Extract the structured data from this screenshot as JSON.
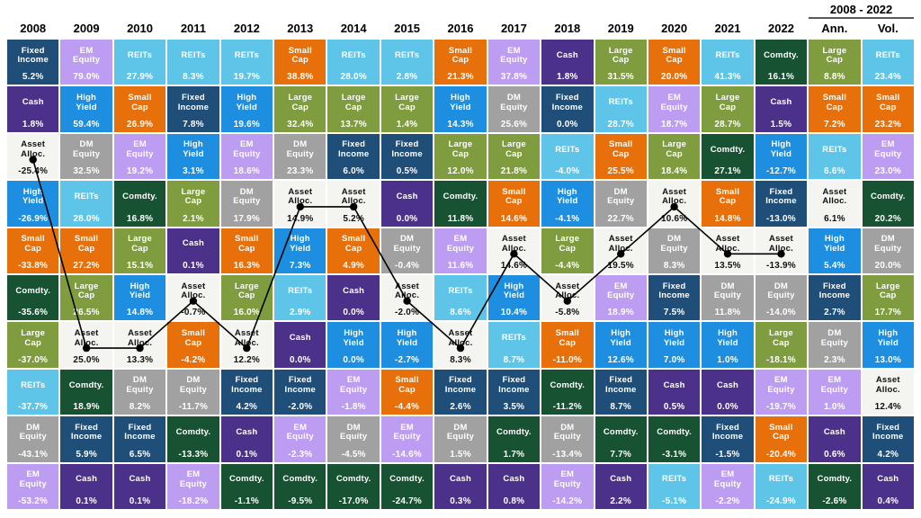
{
  "header": {
    "group_label": "2008 - 2022"
  },
  "chart_data": {
    "type": "table",
    "subtype": "asset-class-returns-quilt",
    "period_label": "2008 - 2022",
    "summary_columns": [
      "Ann.",
      "Vol."
    ],
    "overlay_line_asset": "Asset Alloc.",
    "colors": {
      "Fixed Income": "#1F4E79",
      "EM Equity": "#BD9DF2",
      "REITs": "#5EC4E8",
      "Small Cap": "#E8700A",
      "Cash": "#4B3189",
      "High Yield": "#1E8FE0",
      "Large Cap": "#7F9C3E",
      "Asset Alloc.": "#F4F4F1",
      "DM Equity": "#A1A1A1",
      "Comdty.": "#175233"
    },
    "dark_text_assets": [
      "Asset Alloc."
    ],
    "columns": [
      {
        "label": "2008",
        "in_line": true,
        "cells": [
          [
            "Fixed Income",
            "5.2%"
          ],
          [
            "Cash",
            "1.8%"
          ],
          [
            "Asset Alloc.",
            "-25.4%"
          ],
          [
            "High Yield",
            "-26.9%"
          ],
          [
            "Small Cap",
            "-33.8%"
          ],
          [
            "Comdty.",
            "-35.6%"
          ],
          [
            "Large Cap",
            "-37.0%"
          ],
          [
            "REITs",
            "-37.7%"
          ],
          [
            "DM Equity",
            "-43.1%"
          ],
          [
            "EM Equity",
            "-53.2%"
          ]
        ]
      },
      {
        "label": "2009",
        "in_line": true,
        "cells": [
          [
            "EM Equity",
            "79.0%"
          ],
          [
            "High Yield",
            "59.4%"
          ],
          [
            "DM Equity",
            "32.5%"
          ],
          [
            "REITs",
            "28.0%"
          ],
          [
            "Small Cap",
            "27.2%"
          ],
          [
            "Large Cap",
            "26.5%"
          ],
          [
            "Asset Alloc.",
            "25.0%"
          ],
          [
            "Comdty.",
            "18.9%"
          ],
          [
            "Fixed Income",
            "5.9%"
          ],
          [
            "Cash",
            "0.1%"
          ]
        ]
      },
      {
        "label": "2010",
        "in_line": true,
        "cells": [
          [
            "REITs",
            "27.9%"
          ],
          [
            "Small Cap",
            "26.9%"
          ],
          [
            "EM Equity",
            "19.2%"
          ],
          [
            "Comdty.",
            "16.8%"
          ],
          [
            "Large Cap",
            "15.1%"
          ],
          [
            "High Yield",
            "14.8%"
          ],
          [
            "Asset Alloc.",
            "13.3%"
          ],
          [
            "DM Equity",
            "8.2%"
          ],
          [
            "Fixed Income",
            "6.5%"
          ],
          [
            "Cash",
            "0.1%"
          ]
        ]
      },
      {
        "label": "2011",
        "in_line": true,
        "cells": [
          [
            "REITs",
            "8.3%"
          ],
          [
            "Fixed Income",
            "7.8%"
          ],
          [
            "High Yield",
            "3.1%"
          ],
          [
            "Large Cap",
            "2.1%"
          ],
          [
            "Cash",
            "0.1%"
          ],
          [
            "Asset Alloc.",
            "-0.7%"
          ],
          [
            "Small Cap",
            "-4.2%"
          ],
          [
            "DM Equity",
            "-11.7%"
          ],
          [
            "Comdty.",
            "-13.3%"
          ],
          [
            "EM Equity",
            "-18.2%"
          ]
        ]
      },
      {
        "label": "2012",
        "in_line": true,
        "cells": [
          [
            "REITs",
            "19.7%"
          ],
          [
            "High Yield",
            "19.6%"
          ],
          [
            "EM Equity",
            "18.6%"
          ],
          [
            "DM Equity",
            "17.9%"
          ],
          [
            "Small Cap",
            "16.3%"
          ],
          [
            "Large Cap",
            "16.0%"
          ],
          [
            "Asset Alloc.",
            "12.2%"
          ],
          [
            "Fixed Income",
            "4.2%"
          ],
          [
            "Cash",
            "0.1%"
          ],
          [
            "Comdty.",
            "-1.1%"
          ]
        ]
      },
      {
        "label": "2013",
        "in_line": true,
        "cells": [
          [
            "Small Cap",
            "38.8%"
          ],
          [
            "Large Cap",
            "32.4%"
          ],
          [
            "DM Equity",
            "23.3%"
          ],
          [
            "Asset Alloc.",
            "14.9%"
          ],
          [
            "High Yield",
            "7.3%"
          ],
          [
            "REITs",
            "2.9%"
          ],
          [
            "Cash",
            "0.0%"
          ],
          [
            "Fixed Income",
            "-2.0%"
          ],
          [
            "EM Equity",
            "-2.3%"
          ],
          [
            "Comdty.",
            "-9.5%"
          ]
        ]
      },
      {
        "label": "2014",
        "in_line": true,
        "cells": [
          [
            "REITs",
            "28.0%"
          ],
          [
            "Large Cap",
            "13.7%"
          ],
          [
            "Fixed Income",
            "6.0%"
          ],
          [
            "Asset Alloc.",
            "5.2%"
          ],
          [
            "Small Cap",
            "4.9%"
          ],
          [
            "Cash",
            "0.0%"
          ],
          [
            "High Yield",
            "0.0%"
          ],
          [
            "EM Equity",
            "-1.8%"
          ],
          [
            "DM Equity",
            "-4.5%"
          ],
          [
            "Comdty.",
            "-17.0%"
          ]
        ]
      },
      {
        "label": "2015",
        "in_line": true,
        "cells": [
          [
            "REITs",
            "2.8%"
          ],
          [
            "Large Cap",
            "1.4%"
          ],
          [
            "Fixed Income",
            "0.5%"
          ],
          [
            "Cash",
            "0.0%"
          ],
          [
            "DM Equity",
            "-0.4%"
          ],
          [
            "Asset Alloc.",
            "-2.0%"
          ],
          [
            "High Yield",
            "-2.7%"
          ],
          [
            "Small Cap",
            "-4.4%"
          ],
          [
            "EM Equity",
            "-14.6%"
          ],
          [
            "Comdty.",
            "-24.7%"
          ]
        ]
      },
      {
        "label": "2016",
        "in_line": true,
        "cells": [
          [
            "Small Cap",
            "21.3%"
          ],
          [
            "High Yield",
            "14.3%"
          ],
          [
            "Large Cap",
            "12.0%"
          ],
          [
            "Comdty.",
            "11.8%"
          ],
          [
            "EM Equity",
            "11.6%"
          ],
          [
            "REITs",
            "8.6%"
          ],
          [
            "Asset Alloc.",
            "8.3%"
          ],
          [
            "Fixed Income",
            "2.6%"
          ],
          [
            "DM Equity",
            "1.5%"
          ],
          [
            "Cash",
            "0.3%"
          ]
        ]
      },
      {
        "label": "2017",
        "in_line": true,
        "cells": [
          [
            "EM Equity",
            "37.8%"
          ],
          [
            "DM Equity",
            "25.6%"
          ],
          [
            "Large Cap",
            "21.8%"
          ],
          [
            "Small Cap",
            "14.6%"
          ],
          [
            "Asset Alloc.",
            "14.6%"
          ],
          [
            "High Yield",
            "10.4%"
          ],
          [
            "REITs",
            "8.7%"
          ],
          [
            "Fixed Income",
            "3.5%"
          ],
          [
            "Comdty.",
            "1.7%"
          ],
          [
            "Cash",
            "0.8%"
          ]
        ]
      },
      {
        "label": "2018",
        "in_line": true,
        "cells": [
          [
            "Cash",
            "1.8%"
          ],
          [
            "Fixed Income",
            "0.0%"
          ],
          [
            "REITs",
            "-4.0%"
          ],
          [
            "High Yield",
            "-4.1%"
          ],
          [
            "Large Cap",
            "-4.4%"
          ],
          [
            "Asset Alloc.",
            "-5.8%"
          ],
          [
            "Small Cap",
            "-11.0%"
          ],
          [
            "Comdty.",
            "-11.2%"
          ],
          [
            "DM Equity",
            "-13.4%"
          ],
          [
            "EM Equity",
            "-14.2%"
          ]
        ]
      },
      {
        "label": "2019",
        "in_line": true,
        "cells": [
          [
            "Large Cap",
            "31.5%"
          ],
          [
            "REITs",
            "28.7%"
          ],
          [
            "Small Cap",
            "25.5%"
          ],
          [
            "DM Equity",
            "22.7%"
          ],
          [
            "Asset Alloc.",
            "19.5%"
          ],
          [
            "EM Equity",
            "18.9%"
          ],
          [
            "High Yield",
            "12.6%"
          ],
          [
            "Fixed Income",
            "8.7%"
          ],
          [
            "Comdty.",
            "7.7%"
          ],
          [
            "Cash",
            "2.2%"
          ]
        ]
      },
      {
        "label": "2020",
        "in_line": true,
        "cells": [
          [
            "Small Cap",
            "20.0%"
          ],
          [
            "EM Equity",
            "18.7%"
          ],
          [
            "Large Cap",
            "18.4%"
          ],
          [
            "Asset Alloc.",
            "10.6%"
          ],
          [
            "DM Equity",
            "8.3%"
          ],
          [
            "Fixed Income",
            "7.5%"
          ],
          [
            "High Yield",
            "7.0%"
          ],
          [
            "Cash",
            "0.5%"
          ],
          [
            "Comdty.",
            "-3.1%"
          ],
          [
            "REITs",
            "-5.1%"
          ]
        ]
      },
      {
        "label": "2021",
        "in_line": true,
        "cells": [
          [
            "REITs",
            "41.3%"
          ],
          [
            "Large Cap",
            "28.7%"
          ],
          [
            "Comdty.",
            "27.1%"
          ],
          [
            "Small Cap",
            "14.8%"
          ],
          [
            "Asset Alloc.",
            "13.5%"
          ],
          [
            "DM Equity",
            "11.8%"
          ],
          [
            "High Yield",
            "1.0%"
          ],
          [
            "Cash",
            "0.0%"
          ],
          [
            "Fixed Income",
            "-1.5%"
          ],
          [
            "EM Equity",
            "-2.2%"
          ]
        ]
      },
      {
        "label": "2022",
        "in_line": true,
        "cells": [
          [
            "Comdty.",
            "16.1%"
          ],
          [
            "Cash",
            "1.5%"
          ],
          [
            "High Yield",
            "-12.7%"
          ],
          [
            "Fixed Income",
            "-13.0%"
          ],
          [
            "Asset Alloc.",
            "-13.9%"
          ],
          [
            "DM Equity",
            "-14.0%"
          ],
          [
            "Large Cap",
            "-18.1%"
          ],
          [
            "EM Equity",
            "-19.7%"
          ],
          [
            "Small Cap",
            "-20.4%"
          ],
          [
            "REITs",
            "-24.9%"
          ]
        ]
      },
      {
        "label": "Ann.",
        "in_line": false,
        "cells": [
          [
            "Large Cap",
            "8.8%"
          ],
          [
            "Small Cap",
            "7.2%"
          ],
          [
            "REITs",
            "6.6%"
          ],
          [
            "Asset Alloc.",
            "6.1%"
          ],
          [
            "High Yield",
            "5.4%"
          ],
          [
            "Fixed Income",
            "2.7%"
          ],
          [
            "DM Equity",
            "2.3%"
          ],
          [
            "EM Equity",
            "1.0%"
          ],
          [
            "Cash",
            "0.6%"
          ],
          [
            "Comdty.",
            "-2.6%"
          ]
        ]
      },
      {
        "label": "Vol.",
        "in_line": false,
        "cells": [
          [
            "REITs",
            "23.4%"
          ],
          [
            "Small Cap",
            "23.2%"
          ],
          [
            "EM Equity",
            "23.0%"
          ],
          [
            "Comdty.",
            "20.2%"
          ],
          [
            "DM Equity",
            "20.0%"
          ],
          [
            "Large Cap",
            "17.7%"
          ],
          [
            "High Yield",
            "13.0%"
          ],
          [
            "Asset Alloc.",
            "12.4%"
          ],
          [
            "Fixed Income",
            "4.2%"
          ],
          [
            "Cash",
            "0.4%"
          ]
        ]
      }
    ]
  }
}
